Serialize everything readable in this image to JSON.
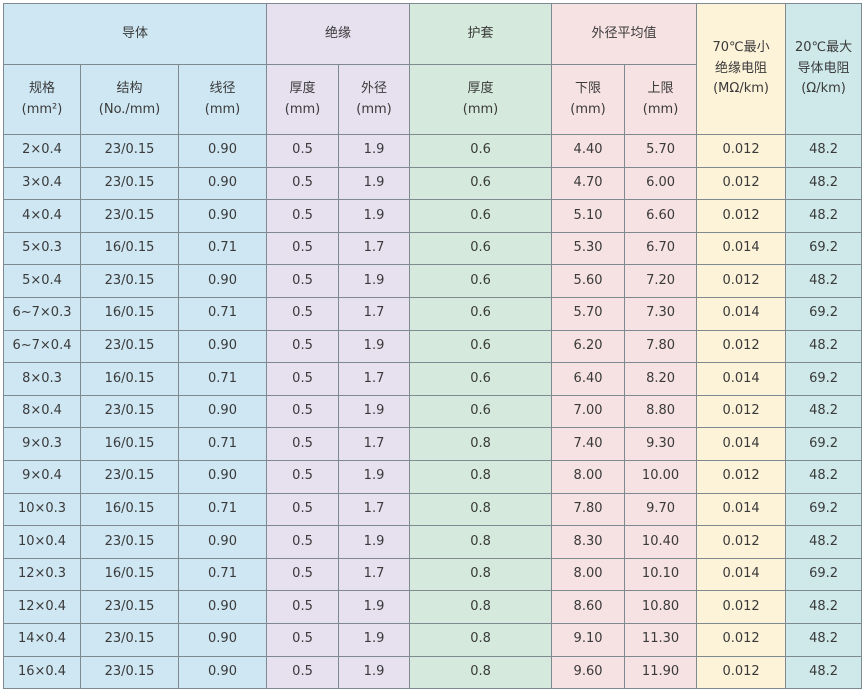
{
  "groups": {
    "conductor": "导体",
    "insulation": "绝缘",
    "jacket": "护套",
    "outer_diameter": "外径平均值",
    "insulation_resistance": {
      "line1": "70℃最小",
      "line2": "绝缘电阻",
      "unit": "(MΩ/km)"
    },
    "conductor_resistance": {
      "line1": "20℃最大",
      "line2": "导体电阻",
      "unit": "(Ω/km)"
    }
  },
  "subheaders": {
    "spec": {
      "label": "规格",
      "unit": "(mm²)"
    },
    "structure": {
      "label": "结构",
      "unit": "(No./mm)"
    },
    "wire_diameter": {
      "label": "线径",
      "unit": "(mm)"
    },
    "ins_thickness": {
      "label": "厚度",
      "unit": "(mm)"
    },
    "ins_outer_diameter": {
      "label": "外径",
      "unit": "(mm)"
    },
    "jacket_thickness": {
      "label": "厚度",
      "unit": "(mm)"
    },
    "lower_limit": {
      "label": "下限",
      "unit": "(mm)"
    },
    "upper_limit": {
      "label": "上限",
      "unit": "(mm)"
    }
  },
  "rows": [
    [
      "2×0.4",
      "23/0.15",
      "0.90",
      "0.5",
      "1.9",
      "0.6",
      "4.40",
      "5.70",
      "0.012",
      "48.2"
    ],
    [
      "3×0.4",
      "23/0.15",
      "0.90",
      "0.5",
      "1.9",
      "0.6",
      "4.70",
      "6.00",
      "0.012",
      "48.2"
    ],
    [
      "4×0.4",
      "23/0.15",
      "0.90",
      "0.5",
      "1.9",
      "0.6",
      "5.10",
      "6.60",
      "0.012",
      "48.2"
    ],
    [
      "5×0.3",
      "16/0.15",
      "0.71",
      "0.5",
      "1.7",
      "0.6",
      "5.30",
      "6.70",
      "0.014",
      "69.2"
    ],
    [
      "5×0.4",
      "23/0.15",
      "0.90",
      "0.5",
      "1.9",
      "0.6",
      "5.60",
      "7.20",
      "0.012",
      "48.2"
    ],
    [
      "6~7×0.3",
      "16/0.15",
      "0.71",
      "0.5",
      "1.7",
      "0.6",
      "5.70",
      "7.30",
      "0.014",
      "69.2"
    ],
    [
      "6~7×0.4",
      "23/0.15",
      "0.90",
      "0.5",
      "1.9",
      "0.6",
      "6.20",
      "7.80",
      "0.012",
      "48.2"
    ],
    [
      "8×0.3",
      "16/0.15",
      "0.71",
      "0.5",
      "1.7",
      "0.6",
      "6.40",
      "8.20",
      "0.014",
      "69.2"
    ],
    [
      "8×0.4",
      "23/0.15",
      "0.90",
      "0.5",
      "1.9",
      "0.6",
      "7.00",
      "8.80",
      "0.012",
      "48.2"
    ],
    [
      "9×0.3",
      "16/0.15",
      "0.71",
      "0.5",
      "1.7",
      "0.8",
      "7.40",
      "9.30",
      "0.014",
      "69.2"
    ],
    [
      "9×0.4",
      "23/0.15",
      "0.90",
      "0.5",
      "1.9",
      "0.8",
      "8.00",
      "10.00",
      "0.012",
      "48.2"
    ],
    [
      "10×0.3",
      "16/0.15",
      "0.71",
      "0.5",
      "1.7",
      "0.8",
      "7.80",
      "9.70",
      "0.014",
      "69.2"
    ],
    [
      "10×0.4",
      "23/0.15",
      "0.90",
      "0.5",
      "1.9",
      "0.8",
      "8.30",
      "10.40",
      "0.012",
      "48.2"
    ],
    [
      "12×0.3",
      "16/0.15",
      "0.71",
      "0.5",
      "1.7",
      "0.8",
      "8.00",
      "10.10",
      "0.014",
      "69.2"
    ],
    [
      "12×0.4",
      "23/0.15",
      "0.90",
      "0.5",
      "1.9",
      "0.8",
      "8.60",
      "10.80",
      "0.012",
      "48.2"
    ],
    [
      "14×0.4",
      "23/0.15",
      "0.90",
      "0.5",
      "1.9",
      "0.8",
      "9.10",
      "11.30",
      "0.012",
      "48.2"
    ],
    [
      "16×0.4",
      "23/0.15",
      "0.90",
      "0.5",
      "1.9",
      "0.8",
      "9.60",
      "11.90",
      "0.012",
      "48.2"
    ]
  ],
  "colors": {
    "conductor": "#cfe7f3",
    "insulation": "#e6e0ef",
    "jacket": "#d5eadd",
    "outer_diameter": "#f6e1e3",
    "insulation_resistance": "#fdf3d9",
    "conductor_resistance": "#cfe9ea",
    "grid_line": "#7f8a90",
    "text": "#3a3a3a"
  }
}
